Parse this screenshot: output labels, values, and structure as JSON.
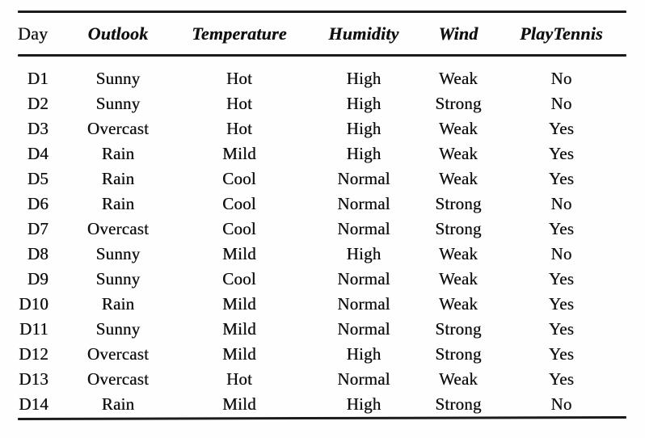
{
  "table": {
    "title": "playtennis-training-examples",
    "columns": [
      {
        "key": "day",
        "label": "Day"
      },
      {
        "key": "outlook",
        "label": "Outlook"
      },
      {
        "key": "temperature",
        "label": "Temperature"
      },
      {
        "key": "humidity",
        "label": "Humidity"
      },
      {
        "key": "wind",
        "label": "Wind"
      },
      {
        "key": "play_tennis",
        "label": "PlayTennis"
      }
    ],
    "rows": [
      [
        "D1",
        "Sunny",
        "Hot",
        "High",
        "Weak",
        "No"
      ],
      [
        "D2",
        "Sunny",
        "Hot",
        "High",
        "Strong",
        "No"
      ],
      [
        "D3",
        "Overcast",
        "Hot",
        "High",
        "Weak",
        "Yes"
      ],
      [
        "D4",
        "Rain",
        "Mild",
        "High",
        "Weak",
        "Yes"
      ],
      [
        "D5",
        "Rain",
        "Cool",
        "Normal",
        "Weak",
        "Yes"
      ],
      [
        "D6",
        "Rain",
        "Cool",
        "Normal",
        "Strong",
        "No"
      ],
      [
        "D7",
        "Overcast",
        "Cool",
        "Normal",
        "Strong",
        "Yes"
      ],
      [
        "D8",
        "Sunny",
        "Mild",
        "High",
        "Weak",
        "No"
      ],
      [
        "D9",
        "Sunny",
        "Cool",
        "Normal",
        "Weak",
        "Yes"
      ],
      [
        "D10",
        "Rain",
        "Mild",
        "Normal",
        "Weak",
        "Yes"
      ],
      [
        "D11",
        "Sunny",
        "Mild",
        "Normal",
        "Strong",
        "Yes"
      ],
      [
        "D12",
        "Overcast",
        "Mild",
        "High",
        "Strong",
        "Yes"
      ],
      [
        "D13",
        "Overcast",
        "Hot",
        "Normal",
        "Weak",
        "Yes"
      ],
      [
        "D14",
        "Rain",
        "Mild",
        "High",
        "Strong",
        "No"
      ]
    ],
    "colors": {
      "text": "#101010",
      "rule": "#1b1b1b",
      "background": "#fefefe"
    }
  }
}
